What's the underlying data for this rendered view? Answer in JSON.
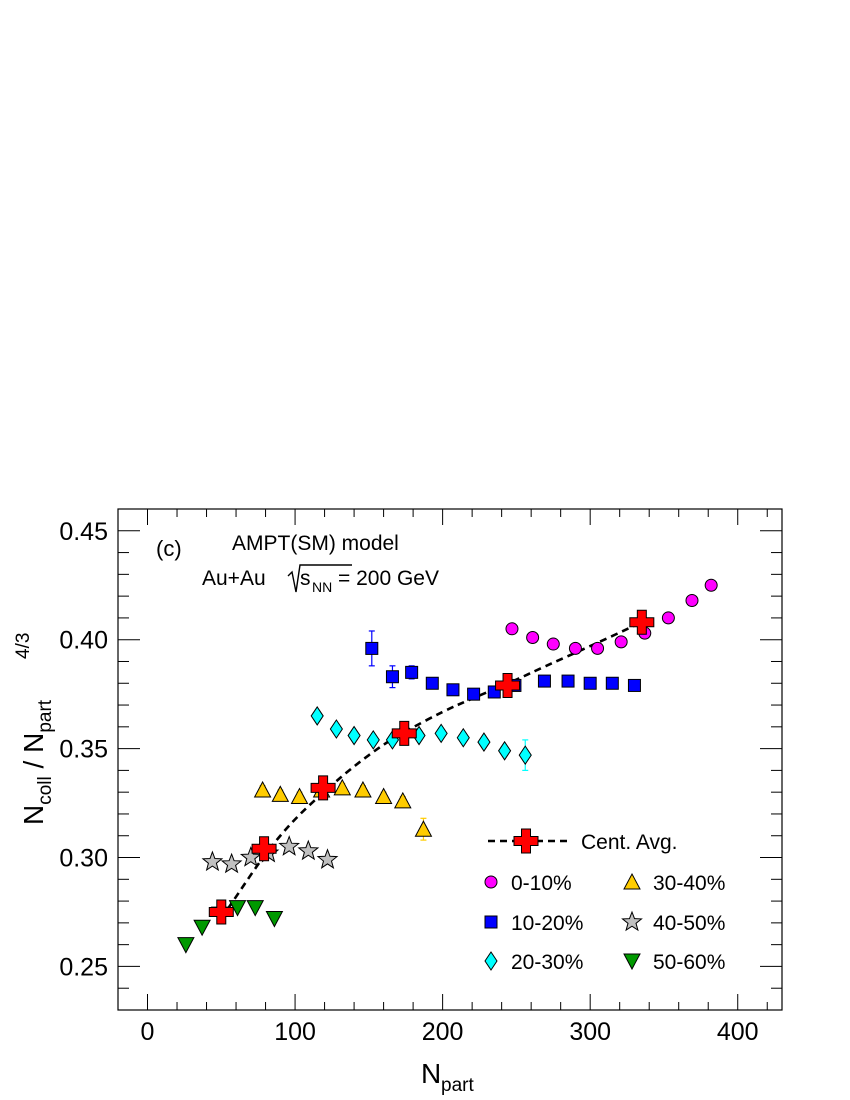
{
  "chart_data": {
    "type": "scatter",
    "panel_label": "(c)",
    "model_label": "AMPT(SM) model",
    "system_label": {
      "prefix": "Au+Au ",
      "sqrt": "s",
      "sub": "NN",
      "suffix": " = 200 GeV"
    },
    "xlabel": {
      "base": "N",
      "sub": "part"
    },
    "ylabel": {
      "num_base": "N",
      "num_sub": "coll",
      "sep": " / ",
      "den_base": "N",
      "den_sub": "part",
      "den_sup": "4/3"
    },
    "xlim": [
      -20,
      430
    ],
    "ylim": [
      0.23,
      0.46
    ],
    "x_ticks": [
      0,
      100,
      200,
      300,
      400
    ],
    "y_ticks": [
      0.25,
      0.3,
      0.35,
      0.4,
      0.45
    ],
    "y_tick_labels": [
      "0.25",
      "0.30",
      "0.35",
      "0.40",
      "0.45"
    ],
    "fit_curve": {
      "name": "Cent. Avg.",
      "style": "dashed",
      "points": [
        [
          50,
          0.272
        ],
        [
          60,
          0.282
        ],
        [
          80,
          0.302
        ],
        [
          100,
          0.318
        ],
        [
          121,
          0.331
        ],
        [
          140,
          0.342
        ],
        [
          160,
          0.352
        ],
        [
          175,
          0.358
        ],
        [
          200,
          0.367
        ],
        [
          220,
          0.373
        ],
        [
          245,
          0.38
        ],
        [
          270,
          0.388
        ],
        [
          300,
          0.397
        ],
        [
          335,
          0.408
        ]
      ]
    },
    "series": [
      {
        "name": "Cent. Avg.",
        "marker": "cross",
        "color": "#ff0000",
        "points": [
          [
            50,
            0.275
          ],
          [
            79,
            0.304
          ],
          [
            119,
            0.332
          ],
          [
            174,
            0.357
          ],
          [
            244,
            0.379
          ],
          [
            335,
            0.408
          ]
        ]
      },
      {
        "name": "0-10%",
        "marker": "circle",
        "color": "#ff00ff",
        "points": [
          [
            247,
            0.405
          ],
          [
            261,
            0.401
          ],
          [
            275,
            0.398
          ],
          [
            290,
            0.396
          ],
          [
            305,
            0.396
          ],
          [
            321,
            0.399
          ],
          [
            337,
            0.403
          ],
          [
            353,
            0.41
          ],
          [
            369,
            0.418
          ],
          [
            382,
            0.425
          ]
        ]
      },
      {
        "name": "10-20%",
        "marker": "square",
        "color": "#0000ff",
        "points": [
          [
            152,
            0.396
          ],
          [
            166,
            0.383
          ],
          [
            179,
            0.385
          ],
          [
            193,
            0.38
          ],
          [
            207,
            0.377
          ],
          [
            221,
            0.375
          ],
          [
            235,
            0.376
          ],
          [
            249,
            0.379
          ],
          [
            269,
            0.381
          ],
          [
            285,
            0.381
          ],
          [
            300,
            0.38
          ],
          [
            315,
            0.38
          ],
          [
            330,
            0.379
          ]
        ],
        "errors": [
          0.008,
          0.005,
          0.003,
          0.002,
          0.002,
          0.002,
          0.002,
          0.002,
          0.002,
          0.002,
          0.002,
          0.002,
          0.002
        ]
      },
      {
        "name": "20-30%",
        "marker": "diamond",
        "color": "#00ffff",
        "points": [
          [
            115,
            0.365
          ],
          [
            128,
            0.359
          ],
          [
            140,
            0.356
          ],
          [
            153,
            0.354
          ],
          [
            166,
            0.354
          ],
          [
            184,
            0.356
          ],
          [
            199,
            0.357
          ],
          [
            214,
            0.355
          ],
          [
            228,
            0.353
          ],
          [
            242,
            0.349
          ],
          [
            256,
            0.347
          ]
        ],
        "errors": [
          0.002,
          0.002,
          0.002,
          0.002,
          0.002,
          0.002,
          0.002,
          0.002,
          0.002,
          0.002,
          0.007
        ]
      },
      {
        "name": "30-40%",
        "marker": "triangle-up",
        "color": "#ffcc00",
        "points": [
          [
            78,
            0.331
          ],
          [
            90,
            0.329
          ],
          [
            103,
            0.328
          ],
          [
            118,
            0.331
          ],
          [
            132,
            0.332
          ],
          [
            146,
            0.331
          ],
          [
            160,
            0.328
          ],
          [
            173,
            0.326
          ],
          [
            187,
            0.313
          ]
        ],
        "errors": [
          0.002,
          0.002,
          0.002,
          0.002,
          0.002,
          0.002,
          0.002,
          0.002,
          0.005
        ]
      },
      {
        "name": "40-50%",
        "marker": "star",
        "color": "#c0c0c0",
        "points": [
          [
            44,
            0.298
          ],
          [
            57,
            0.297
          ],
          [
            70,
            0.3
          ],
          [
            82,
            0.302
          ],
          [
            96,
            0.305
          ],
          [
            109,
            0.303
          ],
          [
            122,
            0.299
          ]
        ]
      },
      {
        "name": "50-60%",
        "marker": "triangle-down",
        "color": "#009900",
        "points": [
          [
            26,
            0.26
          ],
          [
            37,
            0.268
          ],
          [
            49,
            0.274
          ],
          [
            61,
            0.277
          ],
          [
            73,
            0.277
          ],
          [
            86,
            0.272
          ]
        ]
      }
    ],
    "legend": {
      "placement": "bottom-right",
      "entries": [
        {
          "label": "Cent. Avg.",
          "marker": "cross",
          "color": "#ff0000",
          "line": true
        },
        {
          "label": "0-10%",
          "marker": "circle",
          "color": "#ff00ff"
        },
        {
          "label": "30-40%",
          "marker": "triangle-up",
          "color": "#ffcc00"
        },
        {
          "label": "10-20%",
          "marker": "square",
          "color": "#0000ff"
        },
        {
          "label": "40-50%",
          "marker": "star",
          "color": "#c0c0c0"
        },
        {
          "label": "20-30%",
          "marker": "diamond",
          "color": "#00ffff"
        },
        {
          "label": "50-60%",
          "marker": "triangle-down",
          "color": "#009900"
        }
      ]
    },
    "grid": false
  }
}
